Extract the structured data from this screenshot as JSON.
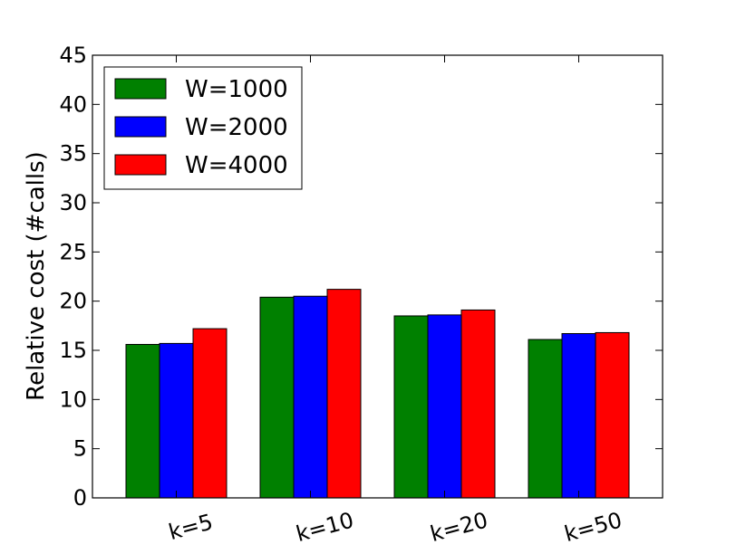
{
  "chart_data": {
    "type": "bar",
    "title": "",
    "xlabel": "",
    "ylabel": "Relative cost (#calls)",
    "ylim": [
      0,
      45
    ],
    "yticks": [
      0,
      5,
      10,
      15,
      20,
      25,
      30,
      35,
      40,
      45
    ],
    "categories": [
      "k=5",
      "k=10",
      "k=20",
      "k=50"
    ],
    "series": [
      {
        "name": "W=1000",
        "color": "#008000",
        "values": [
          15.6,
          20.4,
          18.5,
          16.1
        ]
      },
      {
        "name": "W=2000",
        "color": "#0000ff",
        "values": [
          15.7,
          20.5,
          18.6,
          16.7
        ]
      },
      {
        "name": "W=4000",
        "color": "#ff0000",
        "values": [
          17.2,
          21.2,
          19.1,
          16.8
        ]
      }
    ],
    "legend_position": "top-left",
    "grid": false,
    "xtick_rotation": "rotated"
  }
}
